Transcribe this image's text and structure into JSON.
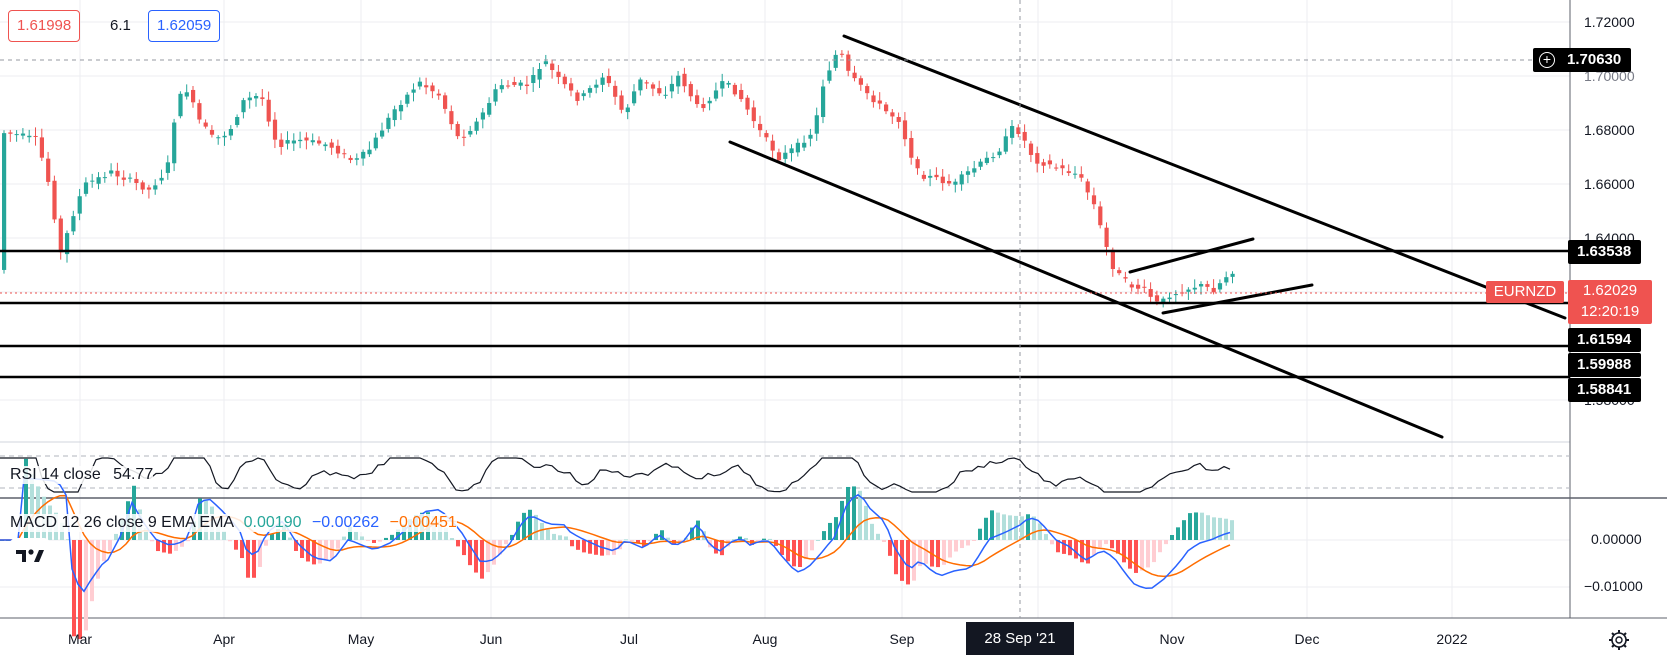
{
  "header": {
    "bid": "1.61998",
    "spread": "6.1",
    "ask": "1.62059"
  },
  "symbol": {
    "name": "EURNZD",
    "last_price": "1.62029",
    "countdown": "12:20:19"
  },
  "crosshair": {
    "price": "1.70630",
    "date": "28 Sep '21"
  },
  "levels": [
    "1.63538",
    "1.61594",
    "1.59988",
    "1.58841"
  ],
  "price_axis": [
    "1.72000",
    "1.70000",
    "1.68000",
    "1.66000",
    "1.64000",
    "1.58000"
  ],
  "date_axis": [
    "Mar",
    "Apr",
    "May",
    "Jun",
    "Jul",
    "Aug",
    "Sep",
    "Nov",
    "Dec",
    "2022"
  ],
  "rsi": {
    "label": "RSI 14 close",
    "value": "54.77"
  },
  "macd": {
    "label": "MACD 12 26 close 9 EMA EMA",
    "histogram": "0.00190",
    "macd": "−0.00262",
    "signal": "−0.00451",
    "axis": [
      "0.00000",
      "−0.01000"
    ]
  },
  "colors": {
    "up": "#26a69a",
    "down": "#ef5350",
    "macd_line": "#2962ff",
    "signal_line": "#ff6d00",
    "label_bg": "#000000",
    "symbol_bg": "#ef5350"
  }
}
